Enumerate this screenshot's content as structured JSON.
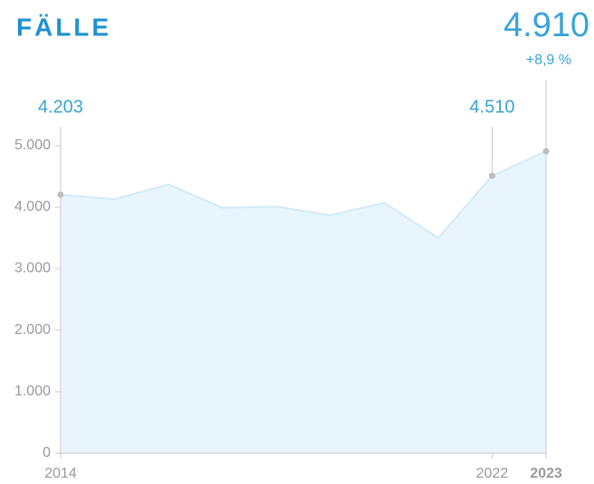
{
  "chart_data": {
    "type": "area",
    "title": "FÄLLE",
    "categories": [
      "2014",
      null,
      null,
      null,
      null,
      null,
      null,
      null,
      "2022",
      "2023"
    ],
    "values": [
      4203,
      4130,
      4370,
      3990,
      4010,
      3870,
      4070,
      3500,
      4510,
      4910
    ],
    "value_labels": [
      "4.203",
      null,
      null,
      null,
      null,
      null,
      null,
      null,
      "4.510",
      "4.910"
    ],
    "change_label": "+8,9 %",
    "color": "#d3eaf8",
    "fill": "#e8f5fd",
    "ylim": [
      0,
      5000
    ],
    "yticks": [
      0,
      {
        "value": 1000,
        "label": "1.000"
      },
      {
        "value": 2000,
        "label": "2.000"
      },
      {
        "value": 3000,
        "label": "3.000"
      },
      {
        "value": 4000,
        "label": "4.000"
      },
      {
        "value": 5000,
        "label": "5.000"
      }
    ]
  }
}
